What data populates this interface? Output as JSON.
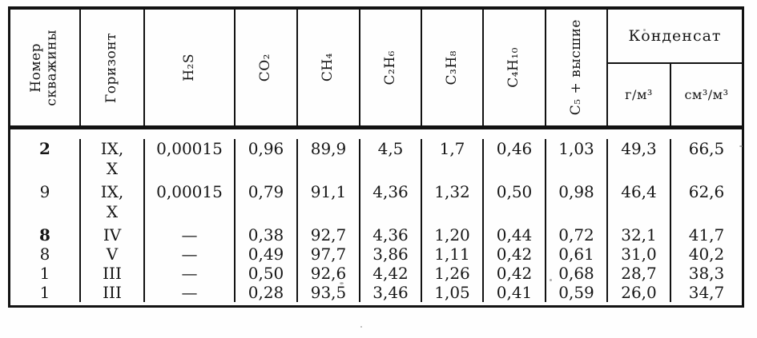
{
  "table": {
    "columns": [
      "Номер\nскважины",
      "Горизонт",
      "H₂S",
      "CO₂",
      "CH₄",
      "C₂H₆",
      "C₃H₈",
      "C₄H₁₀",
      "C₅ + высшие"
    ],
    "condensate": {
      "label": "Конденсат",
      "sub": [
        "г/м³",
        "см³/м³"
      ]
    },
    "rows": [
      [
        "2",
        "IX,\nX",
        "0,00015",
        "0,96",
        "89,9",
        "4,5",
        "1,7",
        "0,46",
        "1,03",
        "49,3",
        "66,5"
      ],
      [
        "9",
        "IX,\nX",
        "0,00015",
        "0,79",
        "91,1",
        "4,36",
        "1,32",
        "0,50",
        "0,98",
        "46,4",
        "62,6"
      ],
      [
        "8",
        "IV",
        "—",
        "0,38",
        "92,7",
        "4,36",
        "1,20",
        "0,44",
        "0,72",
        "32,1",
        "41,7"
      ],
      [
        "8",
        "V",
        "—",
        "0,49",
        "97,7",
        "3,86",
        "1,11",
        "0,42",
        "0,61",
        "31,0",
        "40,2"
      ],
      [
        "1",
        "III",
        "—",
        "0,50",
        "92,6",
        "4,42",
        "1,26",
        "0,42",
        "0,68",
        "28,7",
        "38,3"
      ],
      [
        "1",
        "III",
        "—",
        "0,28",
        "93,5",
        "3,46",
        "1,05",
        "0,41",
        "0,59",
        "26,0",
        "34,7"
      ]
    ],
    "bold_well_rows": [
      0,
      2
    ],
    "ink_color": "#161616",
    "line_color": "#121212"
  }
}
